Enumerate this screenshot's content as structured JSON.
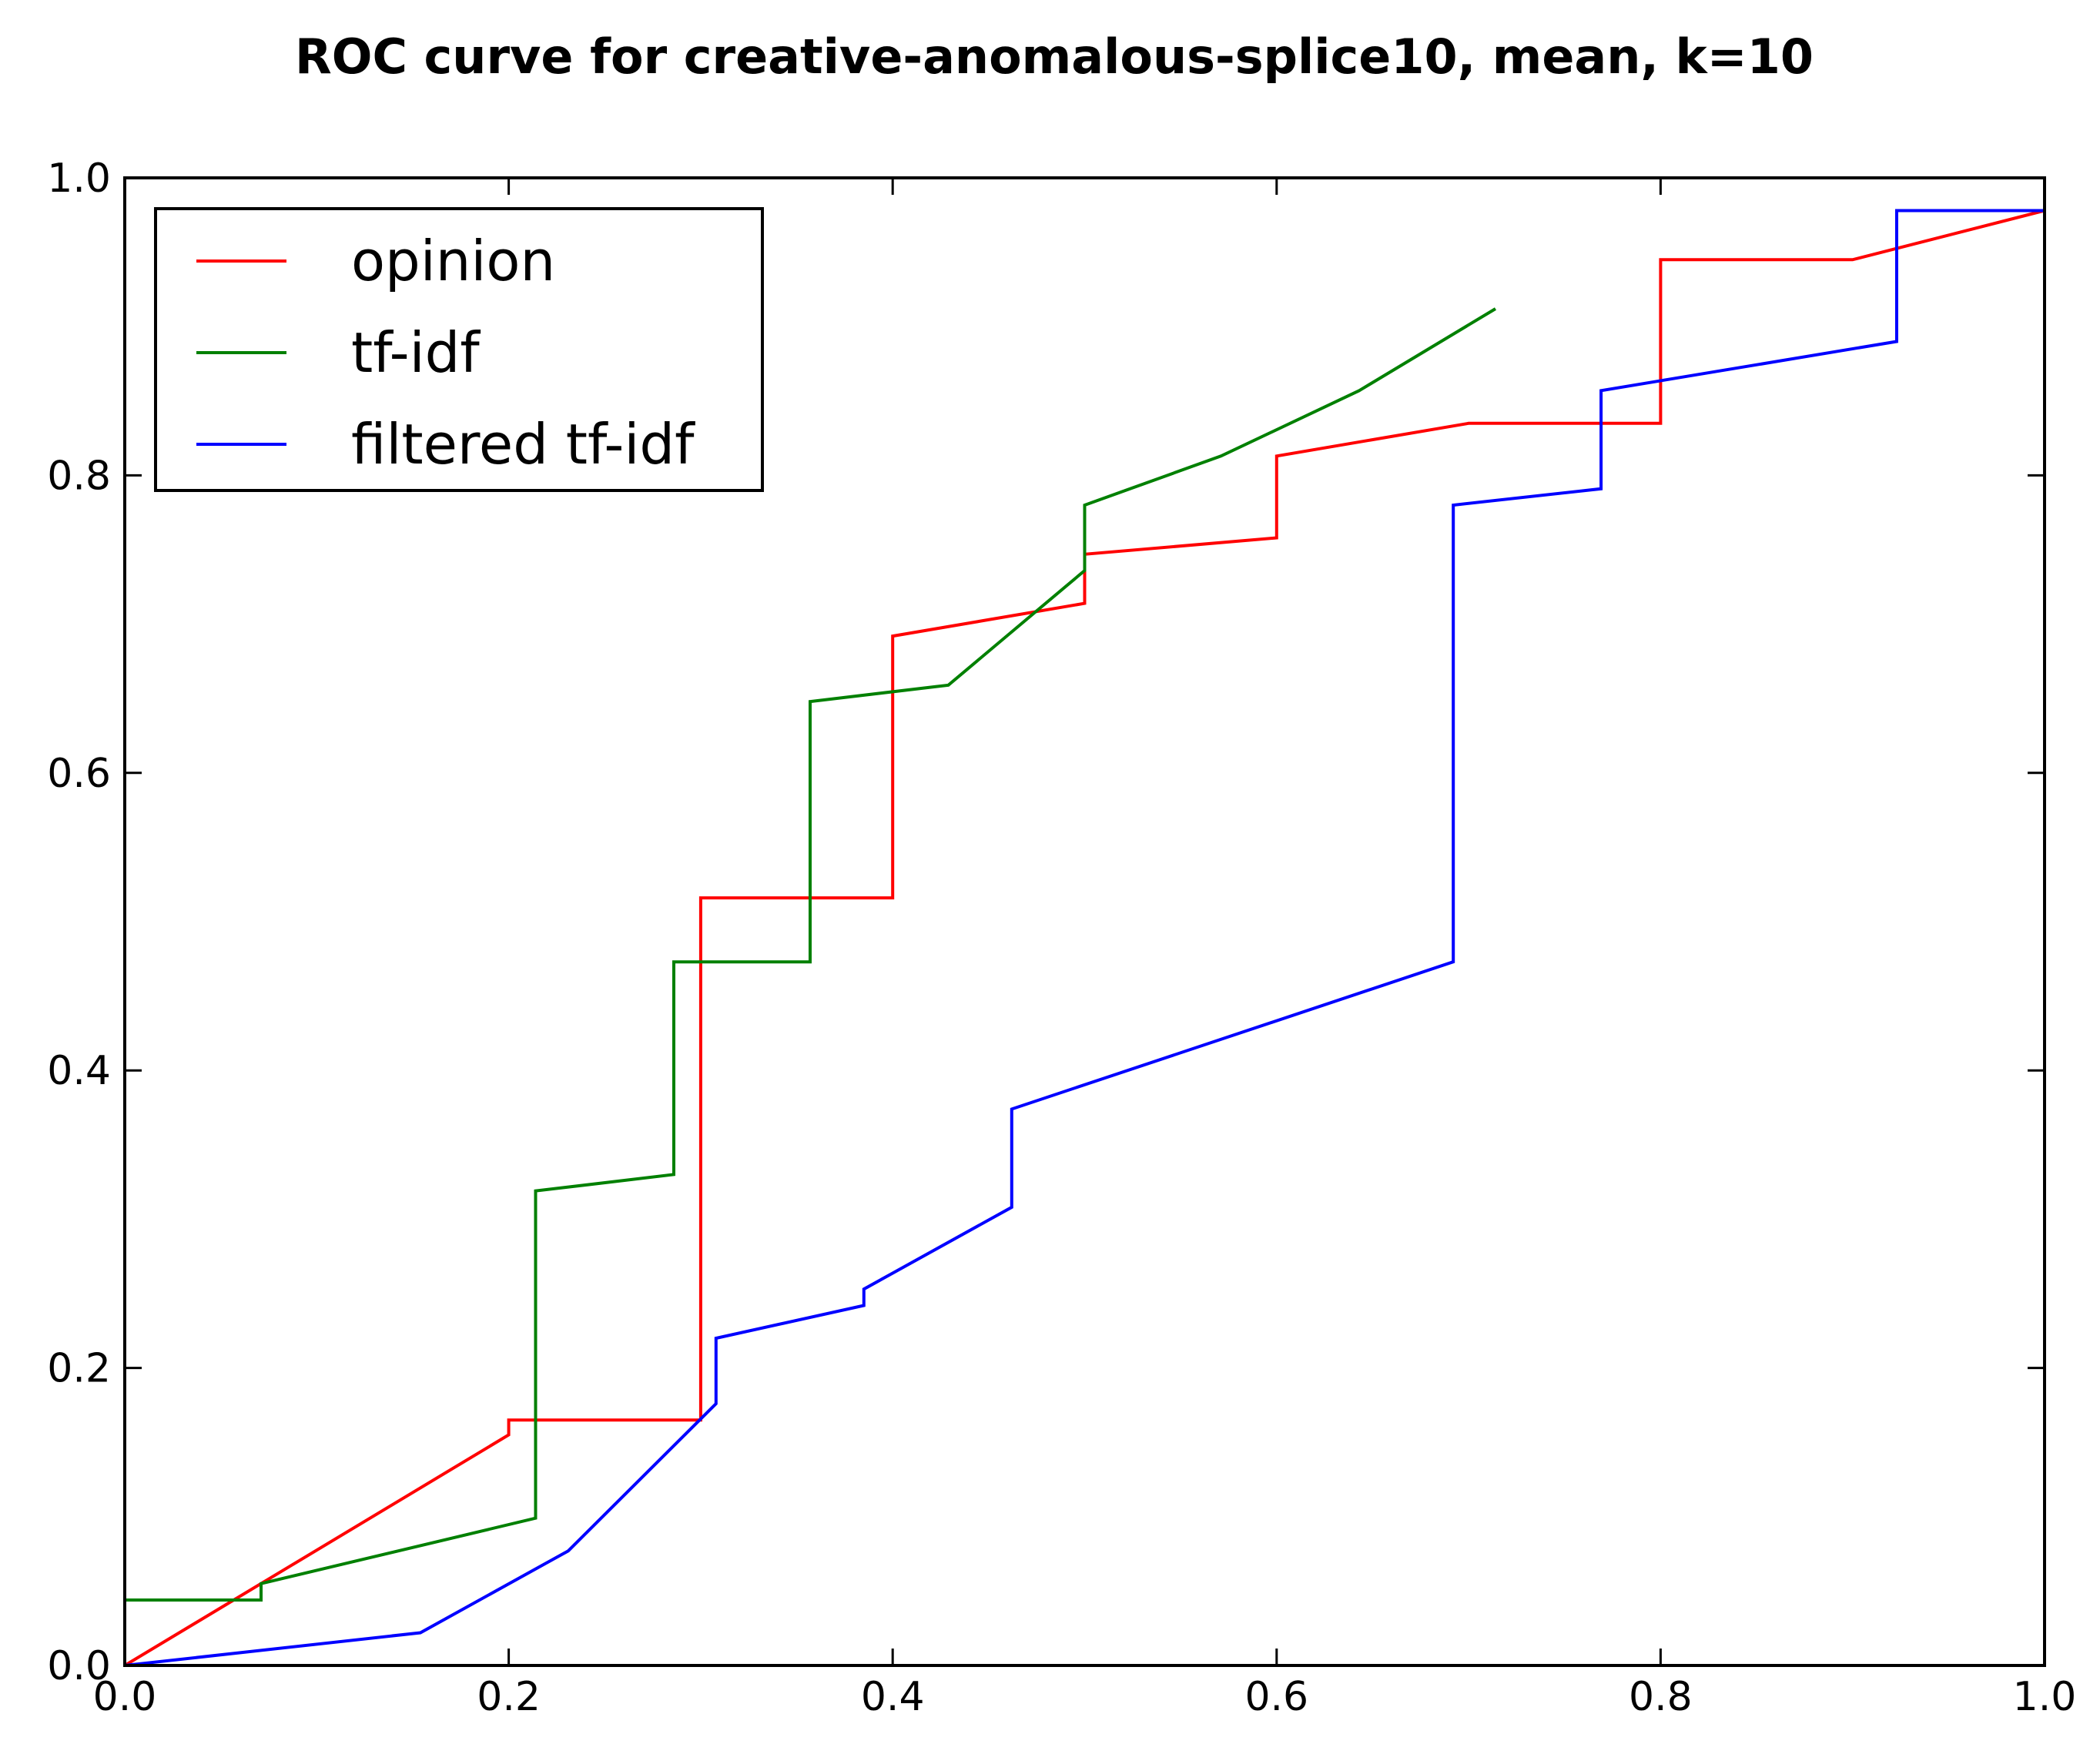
{
  "chart_data": {
    "type": "line",
    "title": "ROC curve for creative-anomalous-splice10, mean, k=10",
    "xlabel": "",
    "ylabel": "",
    "xlim": [
      0.0,
      1.0
    ],
    "ylim": [
      0.0,
      1.0
    ],
    "xticks": [
      "0.0",
      "0.2",
      "0.4",
      "0.6",
      "0.8",
      "1.0"
    ],
    "yticks": [
      "0.0",
      "0.2",
      "0.4",
      "0.6",
      "0.8",
      "1.0"
    ],
    "grid": false,
    "legend_position": "upper-left",
    "series": [
      {
        "name": "opinion",
        "color": "#ff0000",
        "points": [
          [
            0.0,
            0.0
          ],
          [
            0.2,
            0.155
          ],
          [
            0.2,
            0.165
          ],
          [
            0.3,
            0.165
          ],
          [
            0.3,
            0.516
          ],
          [
            0.4,
            0.516
          ],
          [
            0.4,
            0.692
          ],
          [
            0.5,
            0.714
          ],
          [
            0.5,
            0.747
          ],
          [
            0.6,
            0.758
          ],
          [
            0.6,
            0.813
          ],
          [
            0.7,
            0.835
          ],
          [
            0.8,
            0.835
          ],
          [
            0.8,
            0.945
          ],
          [
            0.9,
            0.945
          ],
          [
            1.0,
            0.978
          ]
        ]
      },
      {
        "name": "tf-idf",
        "color": "#008000",
        "points": [
          [
            0.0,
            0.044
          ],
          [
            0.071,
            0.044
          ],
          [
            0.071,
            0.055
          ],
          [
            0.214,
            0.099
          ],
          [
            0.214,
            0.319
          ],
          [
            0.286,
            0.33
          ],
          [
            0.286,
            0.473
          ],
          [
            0.357,
            0.473
          ],
          [
            0.357,
            0.648
          ],
          [
            0.429,
            0.659
          ],
          [
            0.5,
            0.736
          ],
          [
            0.5,
            0.78
          ],
          [
            0.571,
            0.813
          ],
          [
            0.643,
            0.857
          ],
          [
            0.714,
            0.912
          ]
        ]
      },
      {
        "name": "filtered tf-idf",
        "color": "#0000ff",
        "points": [
          [
            0.0,
            0.0
          ],
          [
            0.154,
            0.022
          ],
          [
            0.231,
            0.077
          ],
          [
            0.308,
            0.176
          ],
          [
            0.308,
            0.22
          ],
          [
            0.385,
            0.242
          ],
          [
            0.385,
            0.253
          ],
          [
            0.462,
            0.308
          ],
          [
            0.462,
            0.374
          ],
          [
            0.692,
            0.473
          ],
          [
            0.692,
            0.78
          ],
          [
            0.769,
            0.791
          ],
          [
            0.769,
            0.857
          ],
          [
            0.923,
            0.89
          ],
          [
            0.923,
            0.978
          ],
          [
            1.0,
            0.978
          ]
        ]
      }
    ]
  }
}
